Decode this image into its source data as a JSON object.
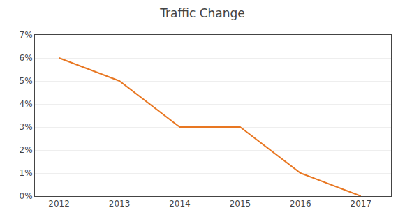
{
  "chart_data": {
    "type": "line",
    "title": "Traffic Change",
    "x": [
      2012,
      2013,
      2014,
      2015,
      2016,
      2017
    ],
    "values": [
      0.06,
      0.05,
      0.03,
      0.03,
      0.01,
      0.0
    ],
    "color": "#E87722",
    "xlim": [
      2011.6,
      2017.5
    ],
    "xticks": [
      2012,
      2013,
      2014,
      2015,
      2016,
      2017
    ],
    "ylim": [
      0,
      0.07
    ],
    "yticks": [
      {
        "value": 0.0,
        "label": "0%"
      },
      {
        "value": 0.01,
        "label": "1%"
      },
      {
        "value": 0.02,
        "label": "2%"
      },
      {
        "value": 0.03,
        "label": "3%"
      },
      {
        "value": 0.04,
        "label": "4%"
      },
      {
        "value": 0.05,
        "label": "5%"
      },
      {
        "value": 0.06,
        "label": "6%"
      },
      {
        "value": 0.07,
        "label": "7%"
      }
    ],
    "grid": "y"
  }
}
